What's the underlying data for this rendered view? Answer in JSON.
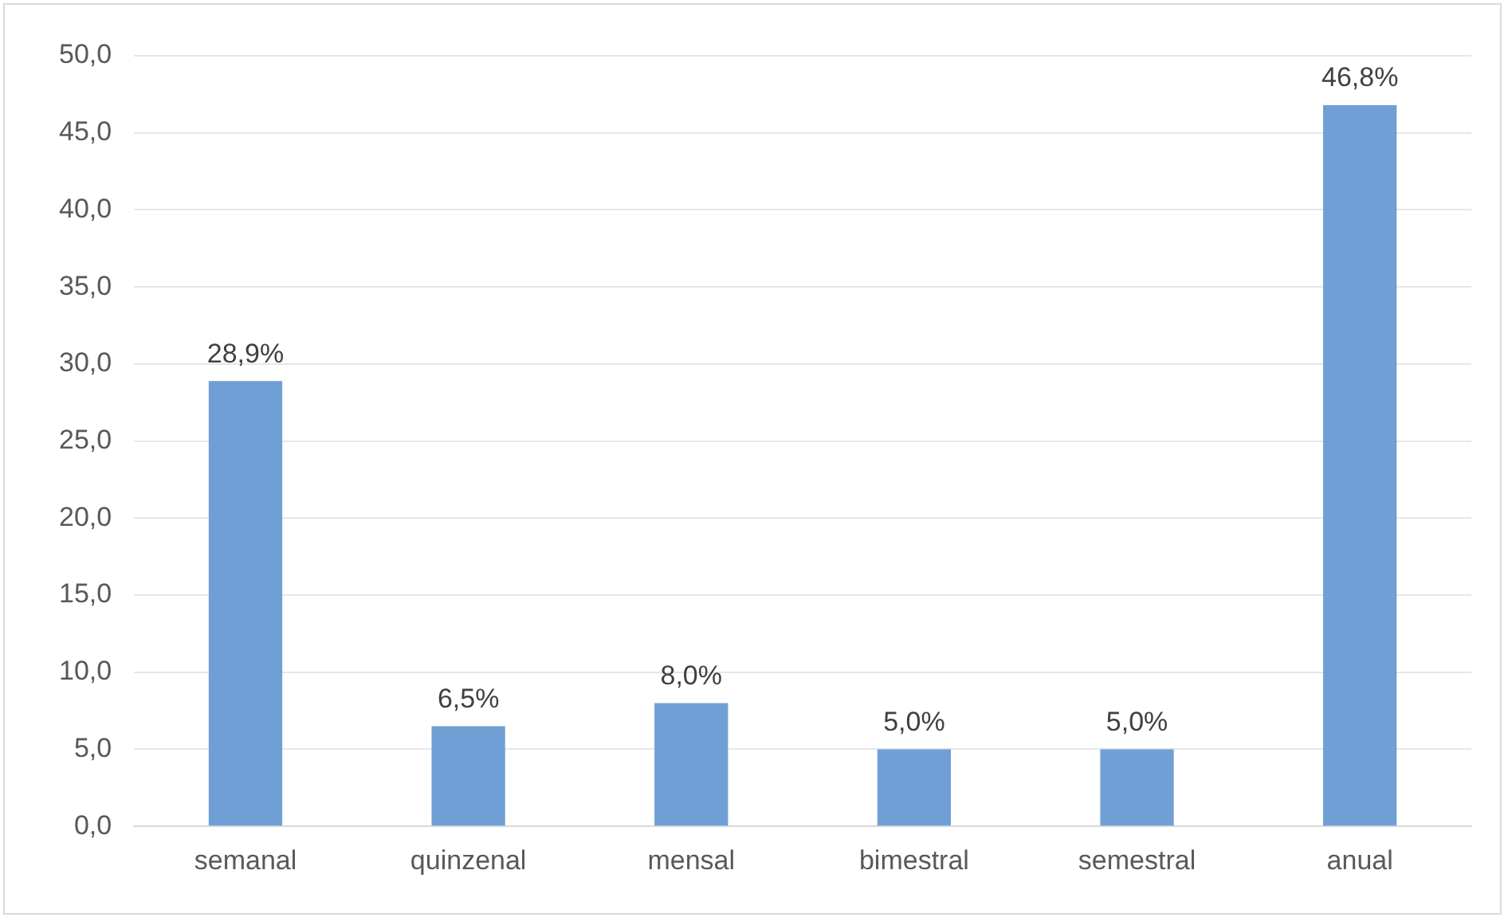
{
  "chart_data": {
    "type": "bar",
    "categories": [
      "semanal",
      "quinzenal",
      "mensal",
      "bimestral",
      "semestral",
      "anual"
    ],
    "values": [
      28.9,
      6.5,
      8.0,
      5.0,
      5.0,
      46.8
    ],
    "value_labels": [
      "28,9%",
      "6,5%",
      "8,0%",
      "5,0%",
      "5,0%",
      "46,8%"
    ],
    "color": "#6f9fd4",
    "ylim": [
      0,
      50
    ],
    "yticks": [
      {
        "value": 0,
        "label": "0,0"
      },
      {
        "value": 5,
        "label": "5,0"
      },
      {
        "value": 10,
        "label": "10,0"
      },
      {
        "value": 15,
        "label": "15,0"
      },
      {
        "value": 20,
        "label": "20,0"
      },
      {
        "value": 25,
        "label": "25,0"
      },
      {
        "value": 30,
        "label": "30,0"
      },
      {
        "value": 35,
        "label": "35,0"
      },
      {
        "value": 40,
        "label": "40,0"
      },
      {
        "value": 45,
        "label": "45,0"
      },
      {
        "value": 50,
        "label": "50,0"
      }
    ],
    "grid": "y",
    "legend": false
  }
}
